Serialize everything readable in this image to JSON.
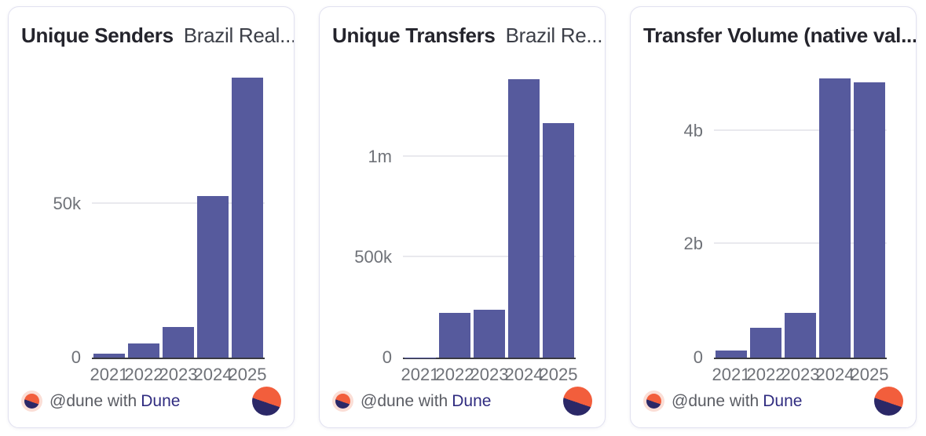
{
  "brand": {
    "bar_color": "#565A9D",
    "logo_orange": "#F25E3C",
    "logo_navy": "#2B2867",
    "link_color": "#302C80"
  },
  "footer": {
    "attribution_prefix": "@dune with",
    "attribution_link": "Dune"
  },
  "chart_data": [
    {
      "type": "bar",
      "title": "Unique Senders",
      "subtitle": "Brazil Real...",
      "categories": [
        "2021",
        "2022",
        "2023",
        "2024",
        "2025"
      ],
      "values": [
        1300,
        4500,
        10000,
        52500,
        91000
      ],
      "xlabel": "",
      "ylabel": "",
      "ylim": [
        0,
        92500
      ],
      "yticks": [
        {
          "value": 0,
          "label": "0"
        },
        {
          "value": 50000,
          "label": "50k"
        }
      ],
      "grid": true,
      "legend": false,
      "bar_color": "#565A9D"
    },
    {
      "type": "bar",
      "title": "Unique Transfers",
      "subtitle": "Brazil Re...",
      "categories": [
        "2021",
        "2022",
        "2023",
        "2024",
        "2025"
      ],
      "values": [
        2000,
        222000,
        237000,
        1390000,
        1170000
      ],
      "xlabel": "",
      "ylabel": "",
      "ylim": [
        0,
        1420000
      ],
      "yticks": [
        {
          "value": 0,
          "label": "0"
        },
        {
          "value": 500000,
          "label": "500k"
        },
        {
          "value": 1000000,
          "label": "1m"
        }
      ],
      "grid": true,
      "legend": false,
      "bar_color": "#565A9D"
    },
    {
      "type": "bar",
      "title": "Transfer Volume (native val...",
      "subtitle": "",
      "categories": [
        "2021",
        "2022",
        "2023",
        "2024",
        "2025"
      ],
      "values": [
        120000000,
        530000000,
        790000000,
        4920000000,
        4860000000
      ],
      "xlabel": "",
      "ylabel": "",
      "ylim": [
        0,
        5020000000
      ],
      "yticks": [
        {
          "value": 0,
          "label": "0"
        },
        {
          "value": 2000000000,
          "label": "2b"
        },
        {
          "value": 4000000000,
          "label": "4b"
        }
      ],
      "grid": true,
      "legend": false,
      "bar_color": "#565A9D"
    }
  ]
}
